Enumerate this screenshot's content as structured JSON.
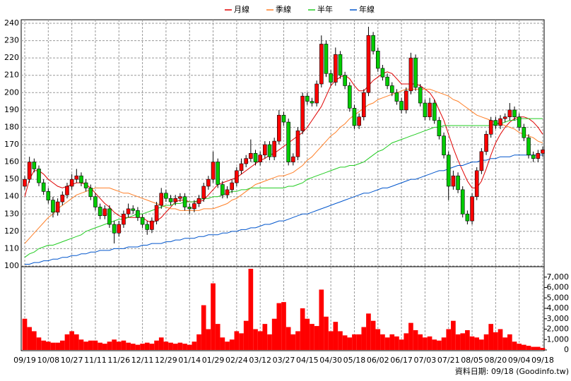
{
  "chart_data": {
    "type": "candlestick",
    "categories": [
      "09/19",
      null,
      null,
      null,
      null,
      "10/08",
      null,
      null,
      null,
      null,
      "10/27",
      null,
      null,
      null,
      null,
      "11/11",
      null,
      null,
      null,
      null,
      "11/26",
      null,
      null,
      null,
      null,
      "12/11",
      null,
      null,
      null,
      null,
      "12/29",
      null,
      null,
      null,
      null,
      "01/14",
      null,
      null,
      null,
      null,
      "01/29",
      null,
      null,
      null,
      null,
      "02/24",
      null,
      null,
      null,
      null,
      "03/12",
      null,
      null,
      null,
      null,
      "03/27",
      null,
      null,
      null,
      null,
      "04/15",
      null,
      null,
      null,
      null,
      "04/30",
      null,
      null,
      null,
      null,
      "05/18",
      null,
      null,
      null,
      null,
      "06/02",
      null,
      null,
      null,
      null,
      "06/17",
      null,
      null,
      null,
      null,
      "07/03",
      null,
      null,
      null,
      null,
      "07/21",
      null,
      null,
      null,
      null,
      "08/05",
      null,
      null,
      null,
      null,
      "08/20",
      null,
      null,
      null,
      null,
      "09/04",
      null,
      null,
      null,
      null,
      "09/18"
    ],
    "open": [
      146,
      150,
      160,
      156,
      148,
      143,
      138,
      131,
      137,
      141,
      146,
      150,
      152,
      148,
      145,
      140,
      134,
      129,
      133,
      124,
      119,
      124,
      130,
      133,
      132,
      128,
      124,
      121,
      126,
      135,
      142,
      139,
      137,
      139,
      140,
      134,
      133,
      136,
      139,
      146,
      150,
      160,
      147,
      141,
      144,
      148,
      155,
      159,
      162,
      165,
      160,
      164,
      170,
      163,
      172,
      187,
      183,
      160,
      163,
      178,
      198,
      195,
      194,
      205,
      228,
      211,
      206,
      222,
      210,
      204,
      191,
      181,
      186,
      200,
      233,
      224,
      214,
      209,
      204,
      200,
      195,
      190,
      201,
      220,
      203,
      194,
      186,
      194,
      184,
      175,
      164,
      146,
      152,
      144,
      130,
      126,
      140,
      155,
      166,
      176,
      184,
      181,
      185,
      186,
      190,
      186,
      180,
      174,
      164,
      162,
      165
    ],
    "high": [
      152,
      163,
      162,
      158,
      150,
      145,
      140,
      139,
      143,
      148,
      153,
      156,
      154,
      150,
      147,
      142,
      136,
      135,
      135,
      126,
      126,
      132,
      136,
      135,
      134,
      130,
      126,
      128,
      137,
      145,
      144,
      141,
      141,
      142,
      142,
      136,
      138,
      141,
      148,
      152,
      166,
      162,
      149,
      146,
      150,
      157,
      162,
      164,
      173,
      167,
      166,
      172,
      172,
      174,
      190,
      189,
      185,
      165,
      180,
      200,
      200,
      197,
      207,
      233,
      230,
      213,
      226,
      224,
      212,
      206,
      193,
      188,
      202,
      238,
      235,
      226,
      216,
      211,
      206,
      202,
      197,
      203,
      223,
      222,
      205,
      196,
      197,
      196,
      186,
      177,
      166,
      155,
      154,
      146,
      132,
      142,
      157,
      168,
      178,
      186,
      186,
      187,
      188,
      194,
      192,
      188,
      182,
      176,
      166,
      167,
      169
    ],
    "low": [
      144,
      148,
      154,
      146,
      141,
      136,
      128,
      129,
      135,
      139,
      144,
      148,
      146,
      143,
      138,
      132,
      127,
      127,
      122,
      113,
      117,
      122,
      128,
      130,
      126,
      122,
      118,
      119,
      124,
      133,
      137,
      135,
      135,
      137,
      132,
      130,
      131,
      134,
      137,
      144,
      148,
      145,
      139,
      139,
      142,
      146,
      153,
      157,
      160,
      158,
      158,
      162,
      161,
      161,
      170,
      181,
      158,
      158,
      161,
      176,
      193,
      192,
      192,
      203,
      209,
      204,
      204,
      208,
      202,
      189,
      179,
      179,
      184,
      198,
      222,
      212,
      207,
      202,
      198,
      193,
      188,
      188,
      199,
      201,
      192,
      184,
      184,
      182,
      173,
      162,
      138,
      144,
      142,
      128,
      124,
      124,
      138,
      153,
      164,
      174,
      179,
      179,
      183,
      184,
      184,
      178,
      172,
      162,
      160,
      160,
      163
    ],
    "close": [
      150,
      160,
      156,
      148,
      143,
      138,
      131,
      137,
      141,
      146,
      150,
      152,
      148,
      145,
      140,
      134,
      129,
      133,
      124,
      119,
      124,
      130,
      133,
      132,
      128,
      124,
      121,
      126,
      135,
      142,
      139,
      137,
      139,
      140,
      134,
      133,
      136,
      139,
      146,
      150,
      160,
      147,
      141,
      144,
      148,
      155,
      159,
      162,
      165,
      160,
      164,
      170,
      163,
      172,
      187,
      183,
      160,
      163,
      178,
      198,
      195,
      194,
      205,
      228,
      211,
      206,
      222,
      210,
      204,
      191,
      181,
      186,
      200,
      233,
      224,
      214,
      209,
      204,
      200,
      195,
      190,
      201,
      220,
      203,
      194,
      186,
      194,
      184,
      175,
      164,
      146,
      152,
      144,
      130,
      126,
      140,
      155,
      166,
      176,
      184,
      181,
      185,
      186,
      190,
      186,
      180,
      174,
      164,
      162,
      165,
      167
    ],
    "up_color": "#ff0000",
    "down_color": "#00cc00",
    "series": [
      {
        "name": "月線",
        "color": "#e00000",
        "values": [
          140,
          150,
          155,
          155,
          153,
          150,
          148,
          146,
          145,
          146,
          147,
          148,
          148,
          147,
          145,
          142,
          139,
          136,
          134,
          131,
          129,
          128,
          128,
          128,
          128,
          128,
          126,
          125,
          126,
          128,
          131,
          134,
          137,
          138,
          138,
          137,
          137,
          137,
          138,
          141,
          144,
          147,
          148,
          149,
          150,
          151,
          153,
          155,
          157,
          159,
          161,
          162,
          164,
          165,
          167,
          169,
          171,
          173,
          175,
          177,
          180,
          184,
          188,
          192,
          198,
          204,
          207,
          209,
          210,
          208,
          204,
          201,
          201,
          204,
          207,
          209,
          211,
          212,
          211,
          208,
          205,
          205,
          205,
          205,
          204,
          202,
          200,
          196,
          190,
          184,
          176,
          168,
          161,
          155,
          149,
          145,
          145,
          149,
          156,
          164,
          171,
          176,
          180,
          183,
          185,
          186,
          186,
          185,
          183,
          180,
          176
        ]
      },
      {
        "name": "季線",
        "color": "#ff7f27",
        "values": [
          113,
          116,
          119,
          122,
          125,
          128,
          130,
          133,
          135,
          137,
          139,
          141,
          142,
          143,
          144,
          145,
          145,
          145,
          145,
          144,
          143,
          142,
          142,
          141,
          140,
          139,
          138,
          137,
          136,
          135,
          134,
          133,
          133,
          132,
          132,
          132,
          132,
          132,
          133,
          133,
          133,
          134,
          135,
          136,
          138,
          139,
          141,
          143,
          145,
          147,
          148,
          149,
          150,
          151,
          152,
          152,
          153,
          154,
          156,
          158,
          161,
          163,
          166,
          169,
          172,
          175,
          177,
          180,
          182,
          185,
          187,
          189,
          191,
          193,
          194,
          196,
          197,
          198,
          199,
          200,
          201,
          202,
          202,
          202,
          202,
          202,
          202,
          201,
          200,
          199,
          198,
          196,
          195,
          193,
          191,
          189,
          187,
          186,
          185,
          184,
          183,
          182,
          181,
          180,
          179,
          177,
          176,
          175,
          174,
          172,
          171
        ]
      },
      {
        "name": "半年",
        "color": "#22cc22",
        "values": [
          105,
          107,
          108,
          110,
          111,
          112,
          112,
          113,
          114,
          115,
          116,
          117,
          118,
          120,
          121,
          122,
          123,
          124,
          125,
          126,
          127,
          127,
          128,
          129,
          130,
          130,
          131,
          132,
          133,
          134,
          135,
          135,
          136,
          136,
          137,
          137,
          137,
          138,
          139,
          139,
          140,
          140,
          141,
          142,
          143,
          143,
          144,
          144,
          145,
          145,
          145,
          145,
          145,
          145,
          145,
          145,
          146,
          146,
          147,
          148,
          150,
          151,
          152,
          153,
          154,
          155,
          156,
          157,
          157,
          158,
          158,
          159,
          160,
          162,
          164,
          166,
          167,
          169,
          171,
          172,
          173,
          174,
          175,
          176,
          177,
          178,
          179,
          180,
          180,
          181,
          181,
          181,
          181,
          181,
          181,
          181,
          181,
          181,
          181,
          181,
          182,
          182,
          183,
          184,
          184,
          185,
          185,
          185,
          185,
          185,
          185
        ]
      },
      {
        "name": "年線",
        "color": "#0055cc",
        "values": [
          101,
          101,
          102,
          102,
          103,
          103,
          104,
          104,
          105,
          105,
          106,
          106,
          107,
          107,
          108,
          108,
          109,
          109,
          109,
          110,
          110,
          110,
          111,
          111,
          111,
          112,
          112,
          113,
          113,
          113,
          114,
          114,
          115,
          115,
          116,
          116,
          116,
          117,
          117,
          118,
          118,
          118,
          119,
          119,
          120,
          120,
          121,
          121,
          122,
          122,
          123,
          124,
          124,
          125,
          126,
          126,
          127,
          128,
          129,
          130,
          130,
          131,
          132,
          133,
          134,
          135,
          136,
          137,
          138,
          139,
          140,
          141,
          142,
          142,
          143,
          144,
          145,
          145,
          146,
          147,
          148,
          149,
          150,
          150,
          151,
          152,
          153,
          154,
          155,
          155,
          156,
          157,
          158,
          158,
          159,
          160,
          160,
          161,
          161,
          162,
          162,
          163,
          163,
          163,
          164,
          164,
          164,
          164,
          164,
          164,
          164
        ]
      }
    ],
    "ylim": [
      100,
      240
    ],
    "yticks": [
      100,
      110,
      120,
      130,
      140,
      150,
      160,
      170,
      180,
      190,
      200,
      210,
      220,
      230,
      240
    ],
    "grid": true,
    "volume": {
      "color": "#ff0000",
      "ylim": [
        0,
        8000
      ],
      "yticks": [
        0,
        {
          "value": 1000,
          "label": "1,000"
        },
        {
          "value": 2000,
          "label": "2,000"
        },
        {
          "value": 3000,
          "label": "3,000"
        },
        {
          "value": 4000,
          "label": "4,000"
        },
        {
          "value": 5000,
          "label": "5,000"
        },
        {
          "value": 6000,
          "label": "6,000"
        },
        {
          "value": 7000,
          "label": "7,000"
        }
      ],
      "values": [
        3000,
        2200,
        1800,
        1200,
        900,
        800,
        700,
        700,
        900,
        1500,
        1800,
        1500,
        1000,
        800,
        900,
        900,
        700,
        600,
        800,
        1000,
        800,
        900,
        700,
        600,
        500,
        600,
        700,
        600,
        900,
        1200,
        800,
        700,
        600,
        700,
        600,
        500,
        800,
        1500,
        4300,
        2000,
        6400,
        2500,
        1200,
        800,
        1000,
        1800,
        1600,
        2800,
        7800,
        2000,
        1800,
        2500,
        1500,
        3000,
        4500,
        4600,
        2200,
        1500,
        1800,
        4000,
        3000,
        2500,
        2300,
        5800,
        3200,
        1800,
        2700,
        1800,
        1400,
        1200,
        1500,
        1500,
        2200,
        3500,
        2800,
        2000,
        1500,
        1200,
        1500,
        1300,
        1000,
        1600,
        2600,
        1900,
        1500,
        1200,
        1300,
        1000,
        900,
        1200,
        2000,
        2800,
        1500,
        1600,
        1900,
        1300,
        1200,
        1000,
        1500,
        2500,
        1700,
        2000,
        1200,
        1500,
        800,
        600,
        500,
        400,
        300,
        300,
        200
      ]
    },
    "footnote": "資料日期: 09/18 (Goodinfo.tw)"
  }
}
